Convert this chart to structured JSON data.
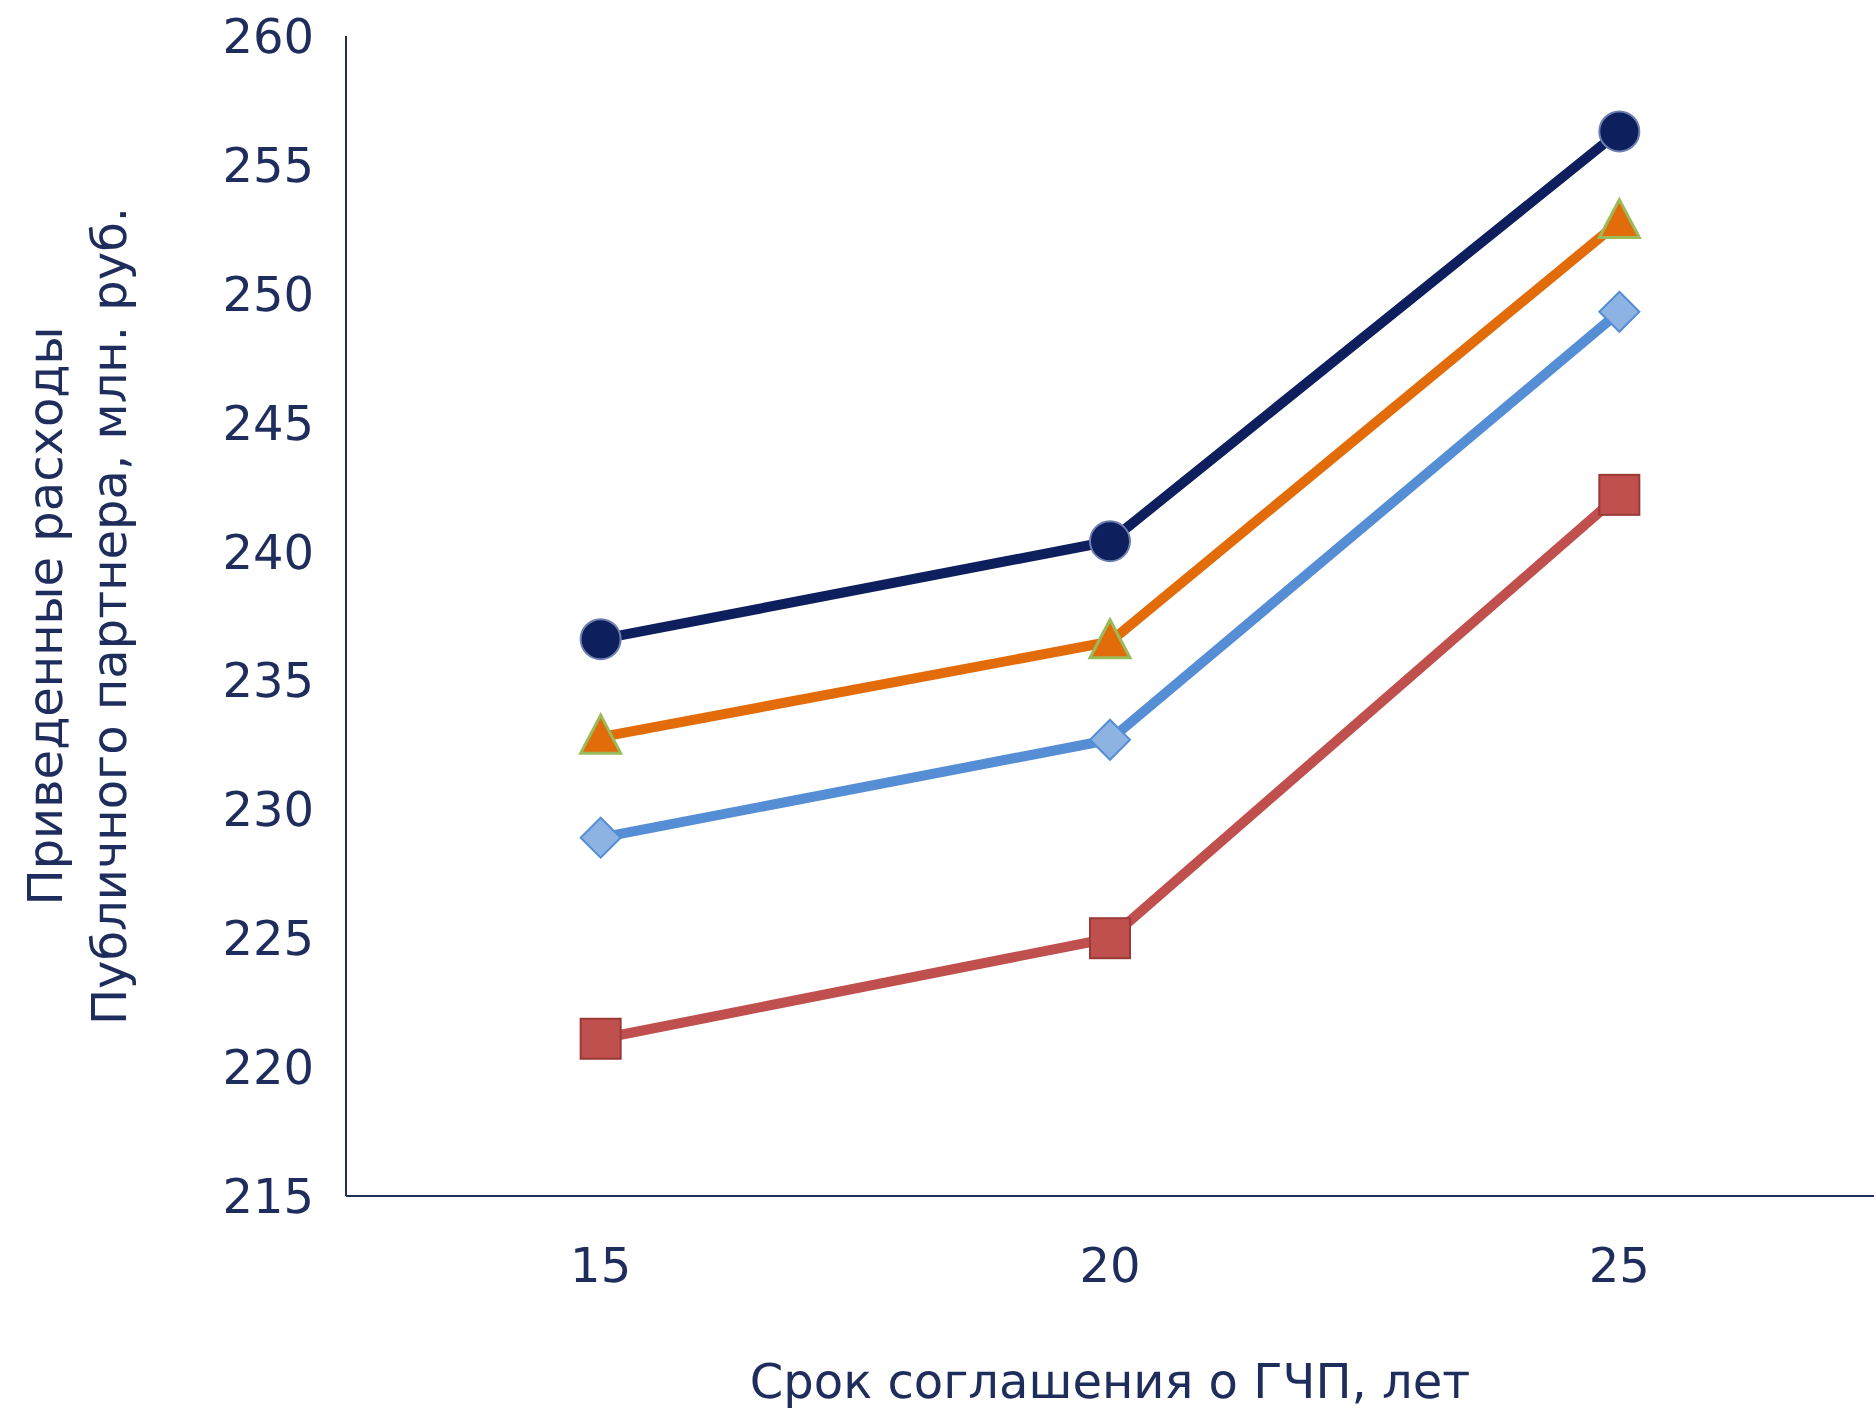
{
  "chart_data": {
    "type": "line",
    "xlabel": "Срок соглашения о ГЧП, лет",
    "ylabel": "Приведенные расходы\nПубличного партнера, млн. руб.",
    "categories": [
      "15",
      "20",
      "25"
    ],
    "ylim": [
      215,
      260
    ],
    "yticks": [
      215,
      220,
      225,
      230,
      235,
      240,
      245,
      250,
      255,
      260
    ],
    "grid": false,
    "legend": false,
    "series": [
      {
        "color": "#0d1f5c",
        "marker": "circle",
        "values": [
          236.6,
          240.4,
          256.3
        ]
      },
      {
        "color": "#e36c0a",
        "marker": "triangle",
        "values": [
          232.8,
          236.5,
          252.8
        ]
      },
      {
        "color": "#558ed5",
        "marker": "diamond",
        "values": [
          228.9,
          232.7,
          249.3
        ]
      },
      {
        "color": "#c0504d",
        "marker": "square",
        "values": [
          221.1,
          225.0,
          242.2
        ]
      }
    ]
  }
}
